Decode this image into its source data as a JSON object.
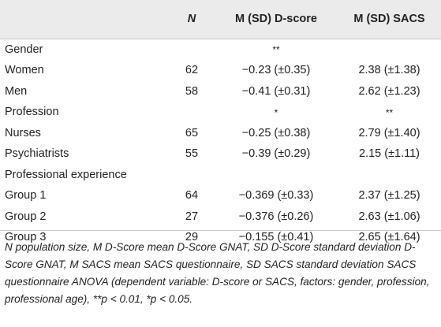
{
  "table": {
    "headers": [
      "",
      "N",
      "M (SD) D-score",
      "M (SD) SACS"
    ],
    "rows": [
      {
        "label": "Gender",
        "n": "",
        "dscore": "**",
        "sacs": ""
      },
      {
        "label": "Women",
        "n": "62",
        "dscore": "−0.23 (±0.35)",
        "sacs": "2.38 (±1.38)"
      },
      {
        "label": "Men",
        "n": "58",
        "dscore": "−0.41 (±0.31)",
        "sacs": "2.62 (±1.23)"
      },
      {
        "label": "Profession",
        "n": "",
        "dscore": "*",
        "sacs": "**"
      },
      {
        "label": "Nurses",
        "n": "65",
        "dscore": "−0.25 (±0.38)",
        "sacs": "2.79 (±1.40)"
      },
      {
        "label": "Psychiatrists",
        "n": "55",
        "dscore": "−0.39 (±0.29)",
        "sacs": "2.15 (±1.11)"
      },
      {
        "label": "Professional experience",
        "n": "",
        "dscore": "",
        "sacs": ""
      },
      {
        "label": "Group 1",
        "n": "64",
        "dscore": "−0.369 (±0.33)",
        "sacs": "2.37 (±1.25)"
      },
      {
        "label": "Group 2",
        "n": "27",
        "dscore": "−0.376 (±0.26)",
        "sacs": "2.63 (±1.06)"
      },
      {
        "label": "Group 3",
        "n": "29",
        "dscore": "−0.155 (±0.41)",
        "sacs": "2.65 (±1.64)"
      }
    ]
  },
  "footnote": "N population size, M D-Score mean D-Score GNAT, SD D-Score standard deviation D-Score GNAT, M SACS mean SACS questionnaire, SD SACS standard deviation SACS questionnaire ANOVA (dependent variable: D-score or SACS, factors: gender, profession, professional age), **p < 0.01, *p < 0.05."
}
